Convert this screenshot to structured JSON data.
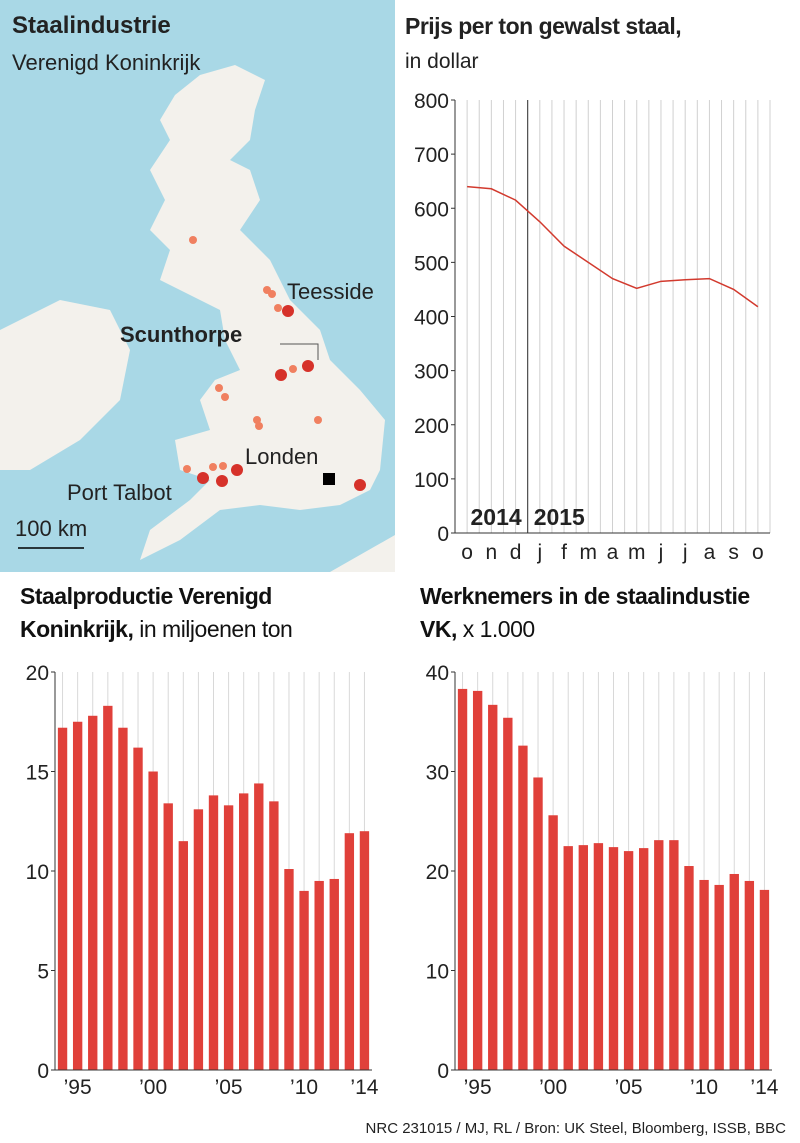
{
  "map": {
    "title": "Staalindustrie",
    "subtitle": "Verenigd Koninkrijk",
    "labels": [
      "Teesside",
      "Scunthorpe",
      "Londen",
      "Port Talbot"
    ],
    "scale": "100 km"
  },
  "chart_data": [
    {
      "type": "line",
      "title": "Prijs per ton gewalst staal,",
      "subtitle": "in dollar",
      "categories": [
        "o",
        "n",
        "d",
        "j",
        "f",
        "m",
        "a",
        "m",
        "j",
        "j",
        "a",
        "s",
        "o"
      ],
      "annotations": [
        "2014",
        "2015"
      ],
      "series": [
        {
          "color": "#d23a2e",
          "values": [
            640,
            636,
            615,
            575,
            530,
            500,
            470,
            452,
            465,
            468,
            470,
            450,
            418
          ]
        }
      ],
      "ylim": [
        0,
        800
      ],
      "yticks": [
        0,
        100,
        200,
        300,
        400,
        500,
        600,
        700,
        800
      ]
    },
    {
      "type": "bar",
      "title": "Staalproductie Verenigd Koninkrijk,",
      "subtitle": "in miljoenen ton",
      "categories": [
        null,
        "’95",
        null,
        null,
        null,
        null,
        "’00",
        null,
        null,
        null,
        null,
        "’05",
        null,
        null,
        null,
        null,
        "’10",
        null,
        null,
        null,
        "’14"
      ],
      "values": [
        17.2,
        17.5,
        17.8,
        18.3,
        17.2,
        16.2,
        15.0,
        13.4,
        11.5,
        13.1,
        13.8,
        13.3,
        13.9,
        14.4,
        13.5,
        10.1,
        9.0,
        9.5,
        9.6,
        11.9,
        12.0
      ],
      "color": "#e0403a",
      "ylim": [
        0,
        20
      ],
      "yticks": [
        0,
        5,
        10,
        15,
        20
      ]
    },
    {
      "type": "bar",
      "title": "Werknemers in de staalindustie VK,",
      "subtitle": "x 1.000",
      "categories": [
        null,
        "’95",
        null,
        null,
        null,
        null,
        "’00",
        null,
        null,
        null,
        null,
        "’05",
        null,
        null,
        null,
        null,
        "’10",
        null,
        null,
        null,
        "’14"
      ],
      "values": [
        38.3,
        38.1,
        36.7,
        35.4,
        32.6,
        29.4,
        25.6,
        22.5,
        22.6,
        22.8,
        22.4,
        22.0,
        22.3,
        23.1,
        23.1,
        20.5,
        19.1,
        18.6,
        19.7,
        19.0,
        18.1
      ],
      "color": "#e0403a",
      "ylim": [
        0,
        40
      ],
      "yticks": [
        0,
        10,
        20,
        30,
        40
      ]
    }
  ],
  "source": "NRC 231015 / MJ, RL / Bron: UK Steel, Bloomberg, ISSB, BBC"
}
